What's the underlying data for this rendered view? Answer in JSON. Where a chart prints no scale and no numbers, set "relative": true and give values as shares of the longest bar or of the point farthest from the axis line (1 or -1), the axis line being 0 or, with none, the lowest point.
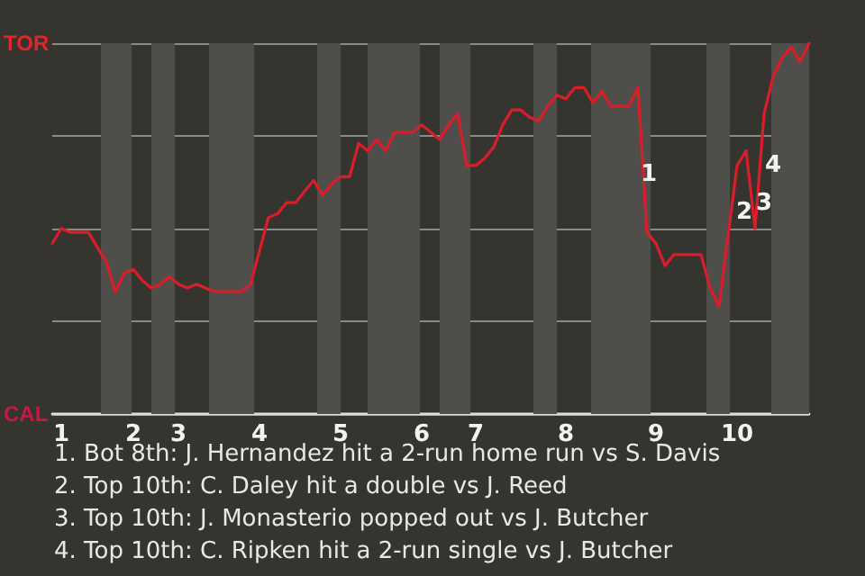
{
  "chart_data": {
    "type": "line",
    "relative": true,
    "categories": [
      null,
      "1",
      null,
      null,
      null,
      null,
      null,
      null,
      null,
      "2",
      null,
      null,
      null,
      null,
      "3",
      null,
      null,
      null,
      null,
      null,
      null,
      null,
      null,
      "4",
      null,
      null,
      null,
      null,
      null,
      null,
      null,
      null,
      "5",
      null,
      null,
      null,
      null,
      null,
      null,
      null,
      null,
      "6",
      null,
      null,
      null,
      null,
      null,
      "7",
      null,
      null,
      null,
      null,
      null,
      null,
      null,
      null,
      null,
      "8",
      null,
      null,
      null,
      null,
      null,
      null,
      null,
      null,
      null,
      "9",
      null,
      null,
      null,
      null,
      null,
      null,
      null,
      null,
      "10",
      null,
      null,
      null,
      null,
      null,
      null,
      null,
      null
    ],
    "series": [
      {
        "color": "#d91e2a",
        "values": [
          0.46,
          0.5,
          0.49,
          0.49,
          0.49,
          0.45,
          0.41,
          0.33,
          0.38,
          0.39,
          0.36,
          0.34,
          0.35,
          0.37,
          0.35,
          0.34,
          0.35,
          0.34,
          0.33,
          0.33,
          0.33,
          0.33,
          0.35,
          0.44,
          0.53,
          0.54,
          0.57,
          0.57,
          0.6,
          0.63,
          0.59,
          0.62,
          0.64,
          0.64,
          0.73,
          0.71,
          0.74,
          0.71,
          0.76,
          0.76,
          0.76,
          0.78,
          0.76,
          0.74,
          0.78,
          0.81,
          0.67,
          0.67,
          0.69,
          0.72,
          0.78,
          0.82,
          0.82,
          0.8,
          0.79,
          0.83,
          0.86,
          0.85,
          0.88,
          0.88,
          0.84,
          0.87,
          0.83,
          0.83,
          0.83,
          0.88,
          0.49,
          0.46,
          0.4,
          0.43,
          0.43,
          0.43,
          0.43,
          0.34,
          0.29,
          0.48,
          0.67,
          0.71,
          0.5,
          0.81,
          0.91,
          0.96,
          0.99,
          0.95,
          1
        ]
      }
    ],
    "grid": "y",
    "marker": "none",
    "line_style": "solid",
    "annotations": [
      "TOR",
      "CAL",
      "1",
      "2",
      "3",
      "4",
      "1. Bot 8th: J. Hernandez hit a 2-run home run vs S. Davis",
      "2. Top 10th: C. Daley hit a double vs J. Reed",
      "3. Top 10th: J. Monasterio popped out vs J. Butcher",
      "4. Top 10th: C. Ripken hit a 2-run single vs J. Butcher"
    ]
  }
}
